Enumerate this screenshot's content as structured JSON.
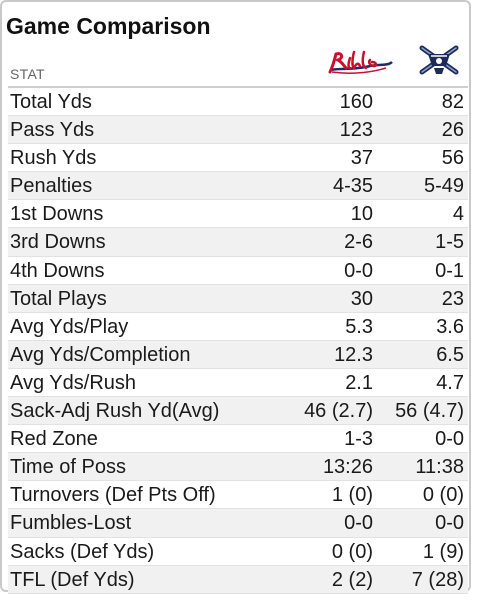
{
  "title": "Game Comparison",
  "header": {
    "stat_label": "STAT",
    "team1_logo": "team-logo-script",
    "team2_logo": "team-logo-crossed"
  },
  "rows": [
    {
      "stat": "Total Yds",
      "team1": "160",
      "team2": "82"
    },
    {
      "stat": "Pass Yds",
      "team1": "123",
      "team2": "26"
    },
    {
      "stat": "Rush Yds",
      "team1": "37",
      "team2": "56"
    },
    {
      "stat": "Penalties",
      "team1": "4-35",
      "team2": "5-49"
    },
    {
      "stat": "1st Downs",
      "team1": "10",
      "team2": "4"
    },
    {
      "stat": "3rd Downs",
      "team1": "2-6",
      "team2": "1-5"
    },
    {
      "stat": "4th Downs",
      "team1": "0-0",
      "team2": "0-1"
    },
    {
      "stat": "Total Plays",
      "team1": "30",
      "team2": "23"
    },
    {
      "stat": "Avg Yds/Play",
      "team1": "5.3",
      "team2": "3.6"
    },
    {
      "stat": "Avg Yds/Completion",
      "team1": "12.3",
      "team2": "6.5"
    },
    {
      "stat": "Avg Yds/Rush",
      "team1": "2.1",
      "team2": "4.7"
    },
    {
      "stat": "Sack-Adj Rush Yd(Avg)",
      "team1": "46 (2.7)",
      "team2": "56 (4.7)"
    },
    {
      "stat": "Red Zone",
      "team1": "1-3",
      "team2": "0-0"
    },
    {
      "stat": "Time of Poss",
      "team1": "13:26",
      "team2": "11:38"
    },
    {
      "stat": "Turnovers (Def Pts Off)",
      "team1": "1 (0)",
      "team2": "0 (0)"
    },
    {
      "stat": "Fumbles-Lost",
      "team1": "0-0",
      "team2": "0-0"
    },
    {
      "stat": "Sacks (Def Yds)",
      "team1": "0 (0)",
      "team2": "1 (9)"
    },
    {
      "stat": "TFL (Def Yds)",
      "team1": "2 (2)",
      "team2": "7 (28)"
    }
  ],
  "colors": {
    "team1_red": "#c8102e",
    "team1_navy": "#1f2a6b",
    "team2_navy": "#1d2a5a",
    "row_stripe": "#f1f1f1"
  }
}
